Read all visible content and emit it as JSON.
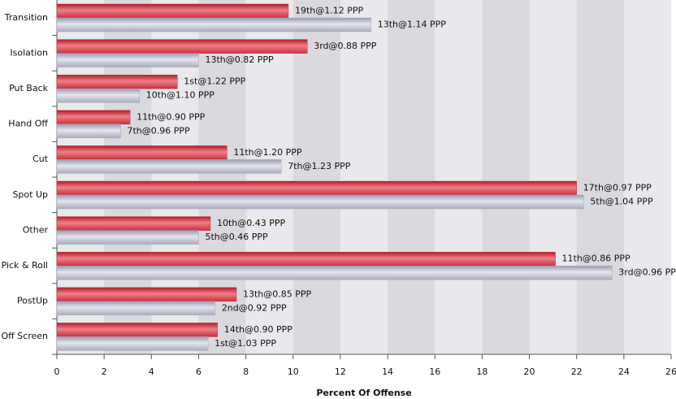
{
  "chart_data": {
    "type": "hbar",
    "categories": [
      "Transition",
      "Isolation",
      "Put Back",
      "Hand Off",
      "Cut",
      "Spot Up",
      "Other",
      "Pick & Roll",
      "PostUp",
      "Off Screen"
    ],
    "series": [
      {
        "color": "#c8303c",
        "values": [
          9.8,
          10.6,
          5.1,
          3.1,
          7.2,
          22.0,
          6.5,
          21.1,
          7.6,
          6.8
        ],
        "labels": [
          "19th@1.12 PPP",
          "3rd@0.88 PPP",
          "1st@1.22 PPP",
          "11th@0.90 PPP",
          "11th@1.20 PPP",
          "17th@0.97 PPP",
          "10th@0.43 PPP",
          "11th@0.86 PPP",
          "13th@0.85 PPP",
          "14th@0.90 PPP"
        ]
      },
      {
        "color": "#a9abbd",
        "values": [
          13.3,
          6.0,
          3.5,
          2.7,
          9.5,
          22.3,
          6.0,
          23.5,
          6.7,
          6.4
        ],
        "labels": [
          "13th@1.14 PPP",
          "13th@0.82 PPP",
          "10th@1.10 PPP",
          "7th@0.96 PPP",
          "7th@1.23 PPP",
          "5th@1.04 PPP",
          "5th@0.46 PPP",
          "3rd@0.96 PPP",
          "2nd@0.92 PPP",
          "1st@1.03 PPP"
        ]
      }
    ],
    "x_label": "Percent Of Offense",
    "xlim": [
      0,
      26
    ],
    "xticks": [
      0,
      2,
      4,
      6,
      8,
      10,
      12,
      14,
      16,
      18,
      20,
      22,
      24,
      26
    ],
    "grid": true
  }
}
